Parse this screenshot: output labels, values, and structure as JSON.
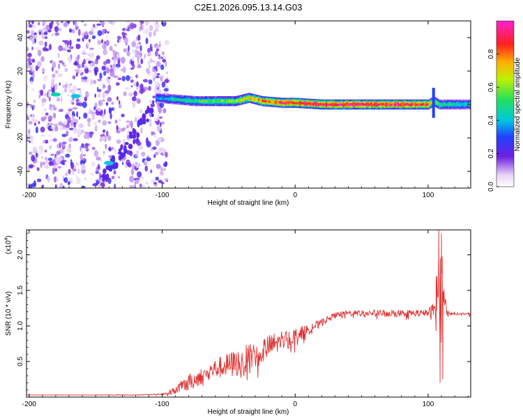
{
  "figure": {
    "title": "C2E1.2026.095.13.14.G03"
  },
  "chart_data": [
    {
      "id": "spectrogram",
      "type": "heatmap",
      "title": "C2E1.2026.095.13.14.G03",
      "xlabel": "Height of straight line (km)",
      "ylabel": "Frequency (Hz)",
      "xlim": [
        -202,
        132
      ],
      "ylim": [
        -50,
        50
      ],
      "xticks": [
        -200,
        -100,
        0,
        100
      ],
      "xtick_labels": [
        "-200",
        "-100",
        "0",
        "100"
      ],
      "yticks": [
        -40,
        -20,
        0,
        20,
        40
      ],
      "ytick_labels": [
        "-40",
        "-20",
        "0",
        "20",
        "40"
      ],
      "colorbar": {
        "label": "Normalized spectral amplitude",
        "range": [
          0.0,
          1.0
        ],
        "ticks": [
          0.0,
          0.2,
          0.4,
          0.6,
          0.8
        ],
        "tick_labels": [
          "0.0",
          "0.2",
          "0.4",
          "0.6",
          "0.8"
        ],
        "colormap": "rainbow"
      },
      "ridge": {
        "height_km": [
          -105,
          -90,
          -75,
          -60,
          -45,
          -35,
          -25,
          -10,
          0,
          20,
          50,
          80,
          100,
          104,
          108,
          115,
          132
        ],
        "frequency_hz": [
          4,
          3,
          2,
          2,
          2,
          4,
          2,
          1,
          1,
          0,
          0,
          0,
          0,
          2,
          0,
          0,
          0
        ],
        "amplitude": [
          0.35,
          0.45,
          0.5,
          0.55,
          0.6,
          0.7,
          0.8,
          0.9,
          0.9,
          0.95,
          0.95,
          0.9,
          0.85,
          0.6,
          0.5,
          0.45,
          0.45
        ]
      },
      "noise_region_km": [
        -202,
        -100
      ],
      "noise_features": [
        {
          "x_km": -180,
          "f_hz": 6,
          "amplitude": 0.45
        },
        {
          "x_km": -165,
          "f_hz": 5,
          "amplitude": 0.4
        },
        {
          "x_km": -140,
          "f_hz": -35,
          "amplitude": 0.4
        }
      ]
    },
    {
      "id": "snr",
      "type": "line",
      "xlabel": "Height of straight line (km)",
      "ylabel": "SNR (10 * v/v)",
      "y_multiplier_label": "(x10",
      "y_multiplier_exponent": "4",
      "y_multiplier_close": ")",
      "xlim": [
        -202,
        132
      ],
      "ylim": [
        0,
        2.35
      ],
      "xticks": [
        -200,
        -100,
        0,
        100
      ],
      "xtick_labels": [
        "-200",
        "-100",
        "0",
        "100"
      ],
      "yticks": [
        0.5,
        1.0,
        1.5,
        2.0
      ],
      "ytick_labels": [
        "0.5",
        "1.0",
        "1.5",
        "2.0"
      ],
      "color": "#e03030",
      "series": [
        {
          "name": "SNR",
          "envelope_x": [
            -202,
            -120,
            -100,
            -90,
            -80,
            -70,
            -60,
            -50,
            -40,
            -30,
            -20,
            -10,
            0,
            10,
            20,
            30,
            40,
            60,
            80,
            100,
            104,
            108,
            110,
            112,
            116,
            132
          ],
          "envelope_y": [
            0.03,
            0.03,
            0.04,
            0.1,
            0.2,
            0.3,
            0.4,
            0.45,
            0.5,
            0.6,
            0.7,
            0.8,
            0.85,
            0.95,
            1.05,
            1.15,
            1.18,
            1.18,
            1.18,
            1.18,
            1.2,
            1.4,
            1.5,
            1.3,
            1.17,
            1.17
          ],
          "noise_amplitude": [
            0.0,
            0.005,
            0.01,
            0.06,
            0.12,
            0.12,
            0.14,
            0.18,
            0.2,
            0.2,
            0.18,
            0.15,
            0.12,
            0.08,
            0.05,
            0.04,
            0.04,
            0.05,
            0.05,
            0.05,
            0.15,
            0.6,
            0.9,
            0.2,
            0.02,
            0.02
          ],
          "spikes": [
            {
              "x": 106,
              "y": 1.7
            },
            {
              "x": 108,
              "y": 2.35
            },
            {
              "x": 109,
              "y": 0.2
            },
            {
              "x": 110,
              "y": 2.3
            },
            {
              "x": 111,
              "y": 0.25
            }
          ]
        }
      ]
    }
  ]
}
